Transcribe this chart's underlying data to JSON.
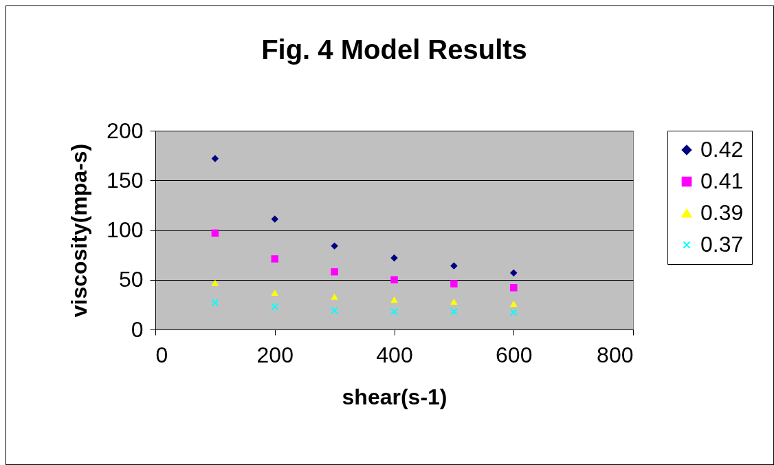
{
  "chart_data": {
    "type": "scatter",
    "title": "Fig. 4 Model Results",
    "xlabel": "shear(s-1)",
    "ylabel": "viscosity(mpa-s)",
    "x": [
      100,
      200,
      300,
      400,
      500,
      600
    ],
    "series": [
      {
        "name": "0.42",
        "color": "#000080",
        "marker": "diamond",
        "values": [
          172,
          111,
          84,
          72,
          64,
          57
        ]
      },
      {
        "name": "0.41",
        "color": "#ff00ff",
        "marker": "square",
        "values": [
          97,
          71,
          58,
          50,
          46,
          42
        ]
      },
      {
        "name": "0.39",
        "color": "#ffff00",
        "marker": "triangle",
        "values": [
          47,
          37,
          33,
          30,
          28,
          26
        ]
      },
      {
        "name": "0.37",
        "color": "#00ffff",
        "marker": "cross",
        "values": [
          27,
          23,
          19,
          18,
          18,
          17
        ]
      }
    ],
    "xlim": [
      0,
      800
    ],
    "xticks": [
      0,
      200,
      400,
      600,
      800
    ],
    "ylim": [
      0,
      200
    ],
    "yticks": [
      0,
      50,
      100,
      150,
      200
    ],
    "grid": "y",
    "legend": "right"
  }
}
